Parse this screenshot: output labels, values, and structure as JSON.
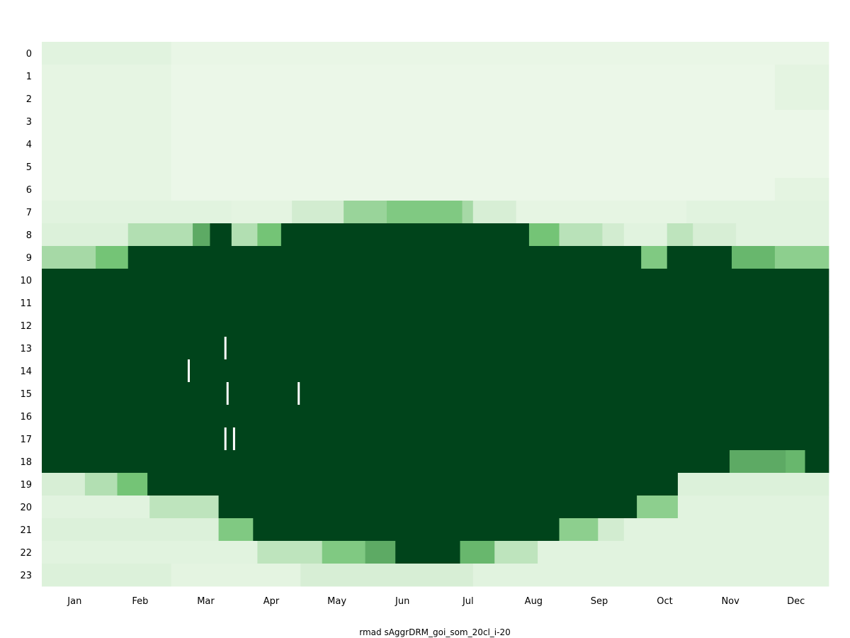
{
  "chart_data": {
    "type": "heatmap",
    "title": "",
    "xlabel": "rmad sAggrDRM_goi_som_20cl_i-20",
    "ylabel": "",
    "x_tick_labels": [
      "Jan",
      "Feb",
      "Mar",
      "Apr",
      "May",
      "Jun",
      "Jul",
      "Aug",
      "Sep",
      "Oct",
      "Nov",
      "Dec"
    ],
    "y_tick_labels": [
      "0",
      "1",
      "2",
      "3",
      "4",
      "5",
      "6",
      "7",
      "8",
      "9",
      "10",
      "11",
      "12",
      "13",
      "14",
      "15",
      "16",
      "17",
      "18",
      "19",
      "20",
      "21",
      "22",
      "23"
    ],
    "x_domain_days": [
      0,
      365
    ],
    "colormap": "Greens",
    "colors": {
      "low": "#f0f9ed",
      "mid": "#74c476",
      "high": "#00441b",
      "missing": "#ffffff"
    },
    "value_range": [
      0,
      1
    ],
    "grid": false,
    "legend": "none",
    "row_levels": [
      {
        "hour": 0,
        "segments": [
          [
            0,
            60,
            0.06
          ],
          [
            60,
            365,
            0.03
          ]
        ]
      },
      {
        "hour": 1,
        "segments": [
          [
            0,
            60,
            0.04
          ],
          [
            60,
            340,
            0.02
          ],
          [
            340,
            365,
            0.05
          ]
        ]
      },
      {
        "hour": 2,
        "segments": [
          [
            0,
            60,
            0.04
          ],
          [
            60,
            340,
            0.02
          ],
          [
            340,
            365,
            0.05
          ]
        ]
      },
      {
        "hour": 3,
        "segments": [
          [
            0,
            60,
            0.04
          ],
          [
            60,
            365,
            0.02
          ]
        ]
      },
      {
        "hour": 4,
        "segments": [
          [
            0,
            60,
            0.04
          ],
          [
            60,
            365,
            0.02
          ]
        ]
      },
      {
        "hour": 5,
        "segments": [
          [
            0,
            60,
            0.04
          ],
          [
            60,
            365,
            0.02
          ]
        ]
      },
      {
        "hour": 6,
        "segments": [
          [
            0,
            60,
            0.04
          ],
          [
            60,
            340,
            0.02
          ],
          [
            340,
            365,
            0.05
          ]
        ]
      },
      {
        "hour": 7,
        "segments": [
          [
            0,
            88,
            0.06
          ],
          [
            88,
            116,
            0.05
          ],
          [
            116,
            140,
            0.12
          ],
          [
            140,
            160,
            0.35
          ],
          [
            160,
            195,
            0.45
          ],
          [
            195,
            200,
            0.3
          ],
          [
            200,
            220,
            0.1
          ],
          [
            220,
            299,
            0.04
          ],
          [
            299,
            365,
            0.06
          ]
        ]
      },
      {
        "hour": 8,
        "segments": [
          [
            0,
            40,
            0.08
          ],
          [
            40,
            70,
            0.25
          ],
          [
            70,
            78,
            0.6
          ],
          [
            78,
            88,
            1
          ],
          [
            88,
            100,
            0.25
          ],
          [
            100,
            111,
            0.5
          ],
          [
            111,
            226,
            1
          ],
          [
            226,
            240,
            0.5
          ],
          [
            240,
            260,
            0.22
          ],
          [
            260,
            270,
            0.12
          ],
          [
            270,
            290,
            0.06
          ],
          [
            290,
            302,
            0.2
          ],
          [
            302,
            322,
            0.1
          ],
          [
            322,
            365,
            0.06
          ]
        ]
      },
      {
        "hour": 9,
        "segments": [
          [
            0,
            25,
            0.3
          ],
          [
            25,
            40,
            0.5
          ],
          [
            40,
            278,
            1
          ],
          [
            278,
            290,
            0.45
          ],
          [
            290,
            320,
            1
          ],
          [
            320,
            340,
            0.55
          ],
          [
            340,
            365,
            0.4
          ]
        ]
      },
      {
        "hour": 10,
        "segments": [
          [
            0,
            365,
            1
          ]
        ]
      },
      {
        "hour": 11,
        "segments": [
          [
            0,
            365,
            1
          ]
        ]
      },
      {
        "hour": 12,
        "segments": [
          [
            0,
            365,
            1
          ]
        ]
      },
      {
        "hour": 13,
        "segments": [
          [
            0,
            365,
            1
          ]
        ]
      },
      {
        "hour": 14,
        "segments": [
          [
            0,
            365,
            1
          ]
        ]
      },
      {
        "hour": 15,
        "segments": [
          [
            0,
            365,
            1
          ]
        ]
      },
      {
        "hour": 16,
        "segments": [
          [
            0,
            365,
            1
          ]
        ]
      },
      {
        "hour": 17,
        "segments": [
          [
            0,
            365,
            1
          ]
        ]
      },
      {
        "hour": 18,
        "segments": [
          [
            0,
            319,
            1
          ],
          [
            319,
            345,
            0.6
          ],
          [
            345,
            354,
            0.55
          ],
          [
            354,
            365,
            1
          ]
        ]
      },
      {
        "hour": 19,
        "segments": [
          [
            0,
            20,
            0.1
          ],
          [
            20,
            35,
            0.25
          ],
          [
            35,
            49,
            0.5
          ],
          [
            49,
            295,
            1
          ],
          [
            295,
            365,
            0.08
          ]
        ]
      },
      {
        "hour": 20,
        "segments": [
          [
            0,
            50,
            0.06
          ],
          [
            50,
            82,
            0.2
          ],
          [
            82,
            276,
            1
          ],
          [
            276,
            295,
            0.4
          ],
          [
            295,
            365,
            0.06
          ]
        ]
      },
      {
        "hour": 21,
        "segments": [
          [
            0,
            82,
            0.08
          ],
          [
            82,
            98,
            0.45
          ],
          [
            98,
            240,
            1
          ],
          [
            240,
            258,
            0.4
          ],
          [
            258,
            270,
            0.12
          ],
          [
            270,
            365,
            0.06
          ]
        ]
      },
      {
        "hour": 22,
        "segments": [
          [
            0,
            100,
            0.06
          ],
          [
            100,
            130,
            0.2
          ],
          [
            130,
            150,
            0.45
          ],
          [
            150,
            164,
            0.6
          ],
          [
            164,
            194,
            1
          ],
          [
            194,
            210,
            0.55
          ],
          [
            210,
            230,
            0.2
          ],
          [
            230,
            365,
            0.06
          ]
        ]
      },
      {
        "hour": 23,
        "segments": [
          [
            0,
            60,
            0.08
          ],
          [
            60,
            120,
            0.05
          ],
          [
            120,
            200,
            0.1
          ],
          [
            200,
            365,
            0.06
          ]
        ]
      }
    ],
    "missing_cells": [
      {
        "hour": 13,
        "day": 85
      },
      {
        "hour": 14,
        "day": 68
      },
      {
        "hour": 15,
        "day": 86
      },
      {
        "hour": 15,
        "day": 119
      },
      {
        "hour": 17,
        "day": 85
      },
      {
        "hour": 17,
        "day": 89
      }
    ]
  }
}
